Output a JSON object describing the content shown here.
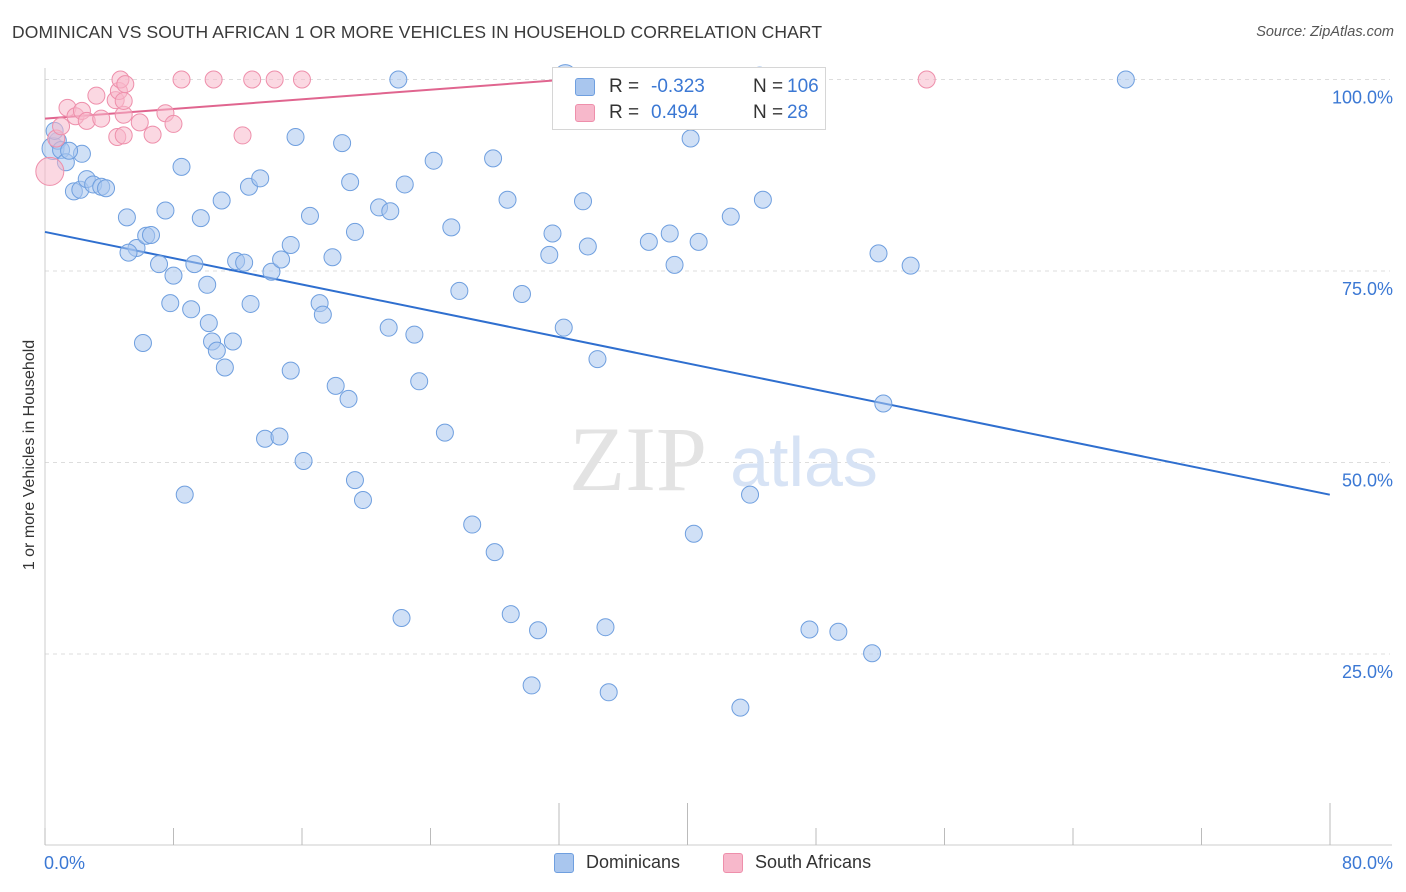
{
  "header": {
    "title": "DOMINICAN VS SOUTH AFRICAN 1 OR MORE VEHICLES IN HOUSEHOLD CORRELATION CHART",
    "source": "Source: ZipAtlas.com"
  },
  "watermark": {
    "zip": "ZIP",
    "atlas": "atlas"
  },
  "legend": {
    "rows": [
      {
        "r_label": "R =",
        "r_value": "-0.323",
        "n_label": "N =",
        "n_value": "106"
      },
      {
        "r_label": "R =",
        "r_value": "0.494",
        "n_label": "N =",
        "n_value": "28"
      }
    ]
  },
  "bottom_legend": {
    "dominicans": "Dominicans",
    "south_africans": "South Africans"
  },
  "colors": {
    "dominican_fill": "#a9c6ee",
    "dominican_stroke": "#6f9fdf",
    "dominican_line": "#2f6fcf",
    "south_african_fill": "#f7b8cb",
    "south_african_stroke": "#ee8fab",
    "south_african_line": "#e0658f",
    "tick_label": "#3b78d4",
    "grid": "#dddddd"
  },
  "chart_data": {
    "type": "scatter",
    "title": "DOMINICAN VS SOUTH AFRICAN 1 OR MORE VEHICLES IN HOUSEHOLD CORRELATION CHART",
    "xlabel": "",
    "ylabel": "1 or more Vehicles in Household",
    "xlim": [
      0,
      80
    ],
    "ylim": [
      0,
      105
    ],
    "x_tick_labels": [
      "0.0%",
      "80.0%"
    ],
    "y_ticks": [
      25,
      50,
      75,
      100
    ],
    "y_tick_labels": [
      "25.0%",
      "50.0%",
      "75.0%",
      "100.0%"
    ],
    "grid": true,
    "legend_position": "top-center",
    "series": [
      {
        "name": "Dominicans",
        "r": -0.323,
        "n": 106,
        "trend": {
          "x": [
            0,
            80
          ],
          "y": [
            80.1,
            45.8
          ]
        },
        "points": [
          [
            0.5,
            91
          ],
          [
            0.8,
            92
          ],
          [
            1.0,
            90.8
          ],
          [
            1.3,
            89.2
          ],
          [
            1.8,
            85.4
          ],
          [
            2.2,
            85.6
          ],
          [
            2.6,
            87
          ],
          [
            3.0,
            86.3
          ],
          [
            3.5,
            86
          ],
          [
            2.3,
            90.3
          ],
          [
            3.8,
            85.8
          ],
          [
            5.1,
            82
          ],
          [
            5.7,
            78
          ],
          [
            6.3,
            79.6
          ],
          [
            5.2,
            77.4
          ],
          [
            6.6,
            79.7
          ],
          [
            7.1,
            75.9
          ],
          [
            7.5,
            82.9
          ],
          [
            8.0,
            74.4
          ],
          [
            8.5,
            88.6
          ],
          [
            9.3,
            75.9
          ],
          [
            9.7,
            81.9
          ],
          [
            10.1,
            73.2
          ],
          [
            11.0,
            84.2
          ],
          [
            11.9,
            76.3
          ],
          [
            12.7,
            86
          ],
          [
            13.4,
            87.1
          ],
          [
            12.4,
            76.1
          ],
          [
            14.1,
            74.9
          ],
          [
            14.7,
            76.5
          ],
          [
            15.3,
            78.4
          ],
          [
            15.6,
            92.5
          ],
          [
            16.5,
            82.2
          ],
          [
            17.9,
            76.8
          ],
          [
            18.5,
            91.7
          ],
          [
            19.0,
            86.6
          ],
          [
            19.3,
            80.1
          ],
          [
            20.8,
            83.3
          ],
          [
            21.5,
            82.8
          ],
          [
            22.4,
            86.3
          ],
          [
            22.0,
            100
          ],
          [
            24.2,
            89.4
          ],
          [
            25.3,
            80.7
          ],
          [
            25.8,
            72.4
          ],
          [
            27.9,
            89.7
          ],
          [
            28.8,
            84.3
          ],
          [
            29.7,
            72
          ],
          [
            31.4,
            77.1
          ],
          [
            31.6,
            79.9
          ],
          [
            32.3,
            67.6
          ],
          [
            33.5,
            84.1
          ],
          [
            33.8,
            78.2
          ],
          [
            34.4,
            63.5
          ],
          [
            37.6,
            78.8
          ],
          [
            38.9,
            79.9
          ],
          [
            39.2,
            75.8
          ],
          [
            40.2,
            92.3
          ],
          [
            40.7,
            78.8
          ],
          [
            42.7,
            82.1
          ],
          [
            44.7,
            84.3
          ],
          [
            51.9,
            77.3
          ],
          [
            53.9,
            75.7
          ],
          [
            52.2,
            57.7
          ],
          [
            67.3,
            100
          ],
          [
            7.8,
            70.8
          ],
          [
            9.1,
            70
          ],
          [
            10.2,
            68.2
          ],
          [
            10.4,
            65.8
          ],
          [
            10.7,
            64.6
          ],
          [
            11.2,
            62.4
          ],
          [
            11.7,
            65.8
          ],
          [
            12.8,
            70.7
          ],
          [
            15.3,
            62
          ],
          [
            17.1,
            70.8
          ],
          [
            17.3,
            69.3
          ],
          [
            18.1,
            60
          ],
          [
            18.9,
            58.3
          ],
          [
            21.4,
            67.6
          ],
          [
            23.0,
            66.7
          ],
          [
            23.3,
            60.6
          ],
          [
            6.1,
            65.6
          ],
          [
            13.7,
            53.1
          ],
          [
            14.6,
            53.4
          ],
          [
            16.1,
            50.2
          ],
          [
            19.3,
            47.7
          ],
          [
            19.8,
            45.1
          ],
          [
            24.9,
            53.9
          ],
          [
            8.7,
            45.8
          ],
          [
            26.6,
            41.9
          ],
          [
            28.0,
            38.3
          ],
          [
            22.2,
            29.7
          ],
          [
            29.0,
            30.2
          ],
          [
            30.7,
            28.1
          ],
          [
            34.9,
            28.5
          ],
          [
            30.3,
            20.9
          ],
          [
            35.1,
            20
          ],
          [
            40.4,
            40.7
          ],
          [
            43.9,
            45.8
          ],
          [
            43.3,
            18
          ],
          [
            47.6,
            28.2
          ],
          [
            49.4,
            27.9
          ],
          [
            51.5,
            25.1
          ],
          [
            1.5,
            90.7
          ],
          [
            0.6,
            93.3
          ],
          [
            44.5,
            100.5
          ],
          [
            32.4,
            100.5
          ]
        ]
      },
      {
        "name": "South Africans",
        "r": 0.494,
        "n": 28,
        "trend": {
          "x": [
            0,
            32.5
          ],
          "y": [
            94.9,
            100
          ]
        },
        "points": [
          [
            0.3,
            88
          ],
          [
            0.7,
            92.3
          ],
          [
            1.0,
            93.9
          ],
          [
            1.4,
            96.3
          ],
          [
            1.9,
            95.2
          ],
          [
            2.3,
            95.9
          ],
          [
            2.6,
            94.6
          ],
          [
            3.2,
            97.9
          ],
          [
            3.5,
            94.9
          ],
          [
            4.4,
            97.3
          ],
          [
            4.5,
            92.5
          ],
          [
            4.6,
            98.5
          ],
          [
            4.9,
            95.4
          ],
          [
            4.7,
            100
          ],
          [
            4.9,
            97.2
          ],
          [
            5.0,
            99.4
          ],
          [
            5.9,
            94.4
          ],
          [
            4.9,
            92.7
          ],
          [
            6.7,
            92.8
          ],
          [
            7.5,
            95.6
          ],
          [
            8.0,
            94.2
          ],
          [
            12.3,
            92.7
          ],
          [
            12.9,
            100
          ],
          [
            14.3,
            100
          ],
          [
            8.5,
            100
          ],
          [
            10.5,
            100
          ],
          [
            16.0,
            100
          ],
          [
            54.9,
            100
          ]
        ]
      }
    ]
  }
}
